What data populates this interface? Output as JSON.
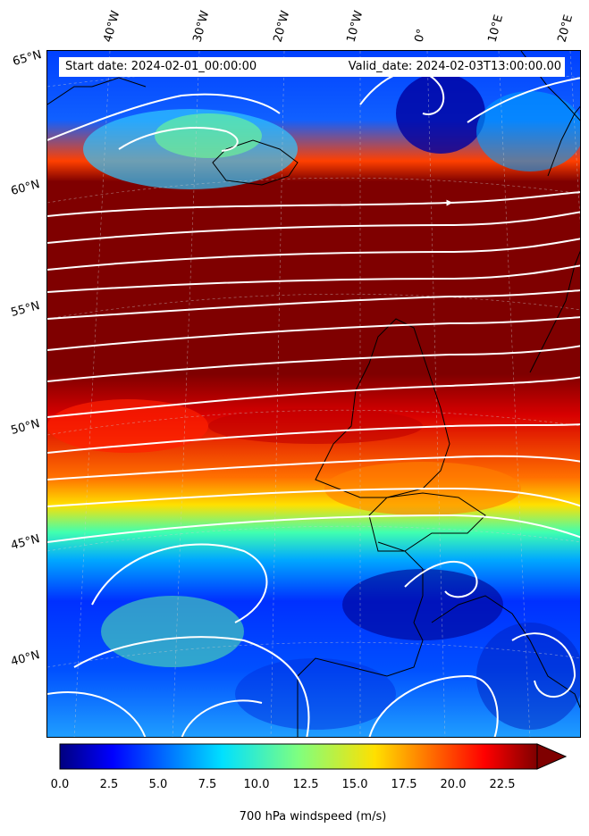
{
  "map": {
    "start_date": "Start date: 2024-02-01_00:00:00",
    "valid_date": "Valid_date: 2024-02-03T13:00:00.00",
    "longitude_labels": [
      "40°W",
      "30°W",
      "20°W",
      "10°W",
      "0°",
      "10°E",
      "20°E"
    ],
    "latitude_labels": [
      "65°N",
      "60°N",
      "55°N",
      "50°N",
      "45°N",
      "40°N"
    ],
    "projection": "oblique conic, gridlines dashed",
    "field": "700 hPa wind speed with white streamlines",
    "jet_core": "dark red band across 50°N–60°N",
    "low_centres": [
      "near 63°N 2°W",
      "near 44°N 5°W (Bay of Biscay)",
      "near 40°N 15°E"
    ]
  },
  "colorbar": {
    "label": "700 hPa windspeed (m/s)",
    "ticks": [
      "0.0",
      "2.5",
      "5.0",
      "7.5",
      "10.0",
      "12.5",
      "15.0",
      "17.5",
      "20.0",
      "22.5"
    ],
    "min": 0,
    "max": 25,
    "extend": "max",
    "colormap": "jet"
  },
  "colors": {
    "jet_low": "#00007f",
    "jet_mid": "#7fff7f",
    "jet_high": "#7f0000",
    "streamline": "#ffffff",
    "coastline": "#000000"
  }
}
